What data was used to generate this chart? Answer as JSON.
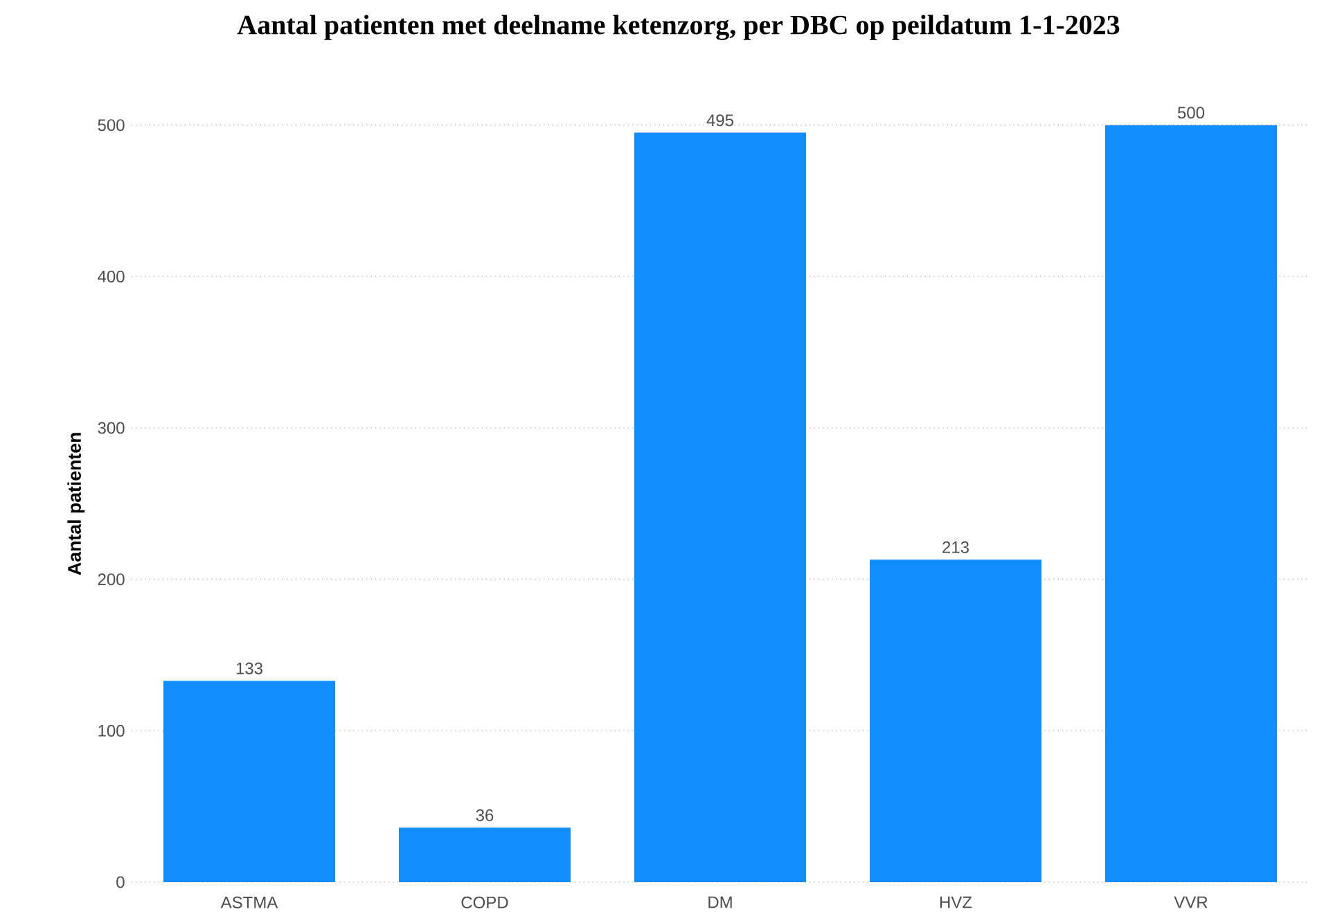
{
  "chart_data": {
    "type": "bar",
    "title": "Aantal patienten met deelname ketenzorg, per DBC op peildatum 1-1-2023",
    "categories": [
      "ASTMA",
      "COPD",
      "DM",
      "HVZ",
      "VVR"
    ],
    "values": [
      133,
      36,
      495,
      213,
      500
    ],
    "color": "#118dff",
    "ylabel": "Aantal patienten",
    "ylim": [
      0,
      500
    ],
    "yticks": [
      0,
      100,
      200,
      300,
      400,
      500
    ],
    "grid": "y",
    "data_labels": true
  }
}
